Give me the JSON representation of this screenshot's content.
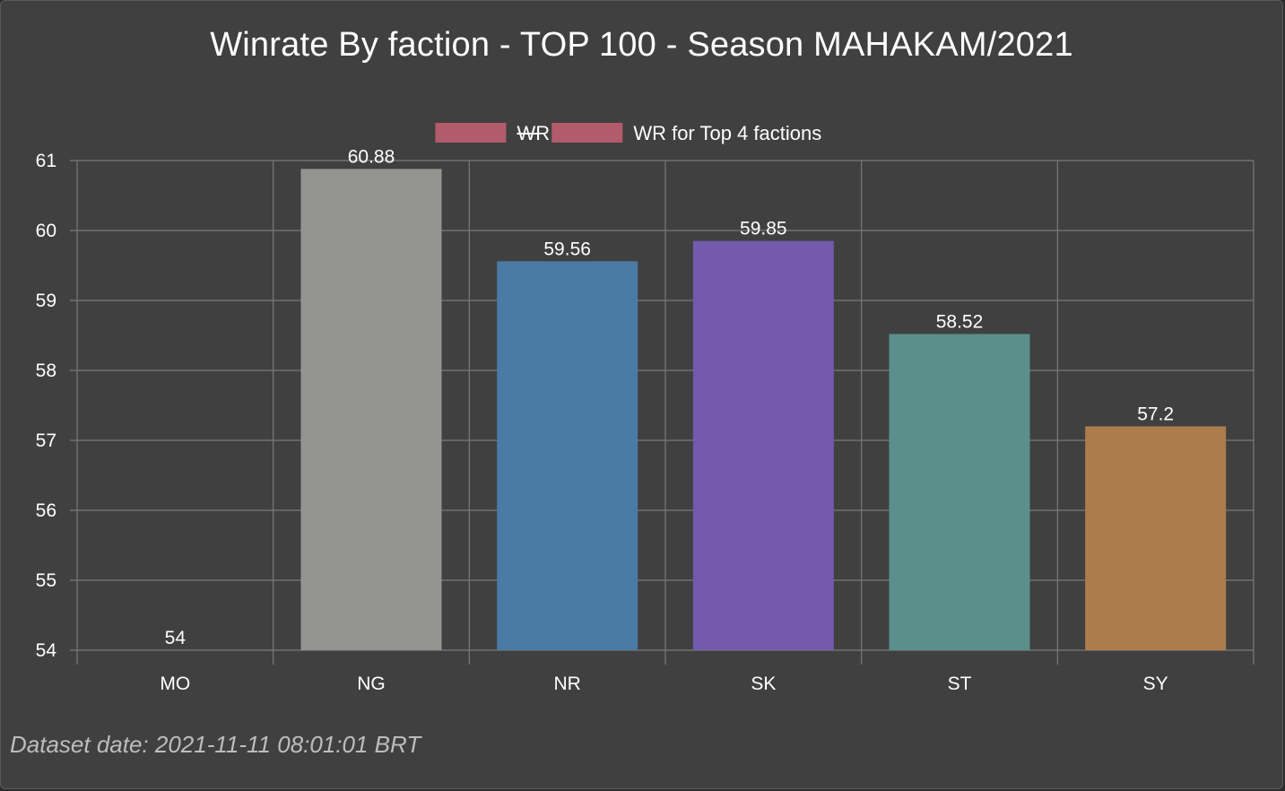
{
  "chart_data": {
    "type": "bar",
    "title": "Winrate By faction - TOP 100 - Season MAHAKAM/2021",
    "categories": [
      "MO",
      "NG",
      "NR",
      "SK",
      "ST",
      "SY"
    ],
    "values": [
      54,
      60.88,
      59.56,
      59.85,
      58.52,
      57.2
    ],
    "value_labels": [
      "54",
      "60.88",
      "59.56",
      "59.85",
      "58.52",
      "57.2"
    ],
    "bar_colors": [
      "#c47a3a",
      "#949492",
      "#4b7aa4",
      "#735aad",
      "#5a8f8c",
      "#ab7c4c"
    ],
    "ylim": [
      54,
      61
    ],
    "yticks": [
      "54",
      "55",
      "56",
      "57",
      "58",
      "59",
      "60",
      "61"
    ],
    "xlabel": "",
    "ylabel": "",
    "grid": true,
    "legend_position": "top-center",
    "legend": [
      {
        "label": "WR",
        "color": "#b25b6b",
        "hidden": true
      },
      {
        "label": "WR for Top 4 factions",
        "color": "#b25b6b",
        "hidden": false
      }
    ]
  },
  "footer": {
    "dataset_date": "Dataset date: 2021-11-11 08:01:01 BRT"
  }
}
